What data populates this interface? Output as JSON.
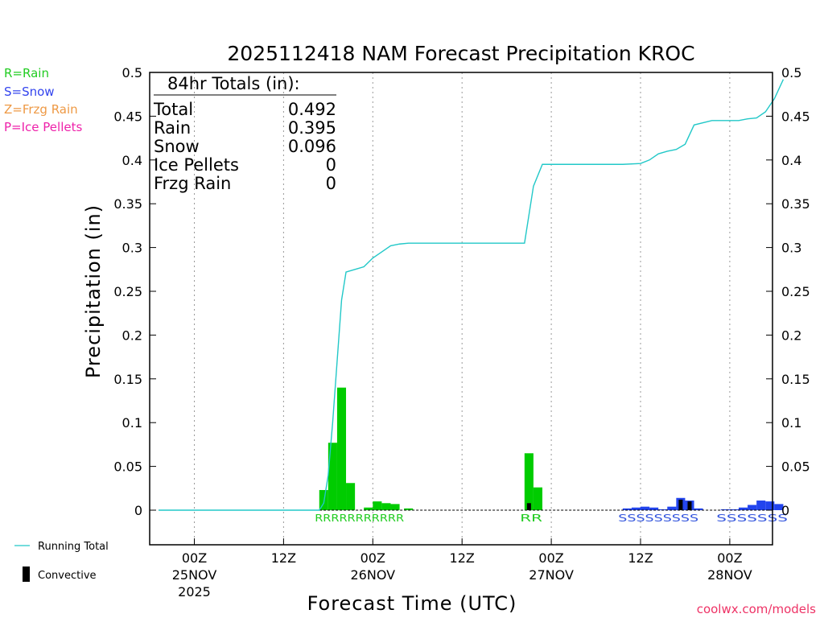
{
  "chart_data": {
    "type": "bar",
    "title": "2025112418 NAM Forecast Precipitation KROC",
    "xlabel": "Forecast Time (UTC)",
    "ylabel": "Precipitation (in)",
    "ylim": [
      0,
      0.5
    ],
    "xlim_hours": [
      -4,
      66
    ],
    "yticks": [
      "0",
      "0.05",
      "0.1",
      "0.15",
      "0.2",
      "0.25",
      "0.3",
      "0.35",
      "0.4",
      "0.45",
      "0.5"
    ],
    "xticks": [
      {
        "hour": 0,
        "line1": "00Z",
        "line2": "25NOV",
        "line3": "2025"
      },
      {
        "hour": 10,
        "line1": "12Z",
        "line2": "",
        "line3": ""
      },
      {
        "hour": 20,
        "line1": "00Z",
        "line2": "26NOV",
        "line3": ""
      },
      {
        "hour": 30,
        "line1": "12Z",
        "line2": "",
        "line3": ""
      },
      {
        "hour": 40,
        "line1": "00Z",
        "line2": "27NOV",
        "line3": ""
      },
      {
        "hour": 50,
        "line1": "12Z",
        "line2": "",
        "line3": ""
      },
      {
        "hour": 60,
        "line1": "00Z",
        "line2": "28NOV",
        "line3": ""
      }
    ],
    "totals_box": {
      "header": "84hr Totals (in):",
      "rows": [
        {
          "label": "Total",
          "value": "0.492"
        },
        {
          "label": "Rain",
          "value": "0.395"
        },
        {
          "label": "Snow",
          "value": "0.096"
        },
        {
          "label": "Ice Pellets",
          "value": "0"
        },
        {
          "label": "Frzg Rain",
          "value": "0"
        }
      ]
    },
    "type_legend": [
      {
        "label": "R=Rain",
        "color": "#22cc22"
      },
      {
        "label": "S=Snow",
        "color": "#3344ee"
      },
      {
        "label": "Z=Frzg Rain",
        "color": "#ee9944"
      },
      {
        "label": "P=Ice Pellets",
        "color": "#ee22aa"
      }
    ],
    "bottom_legend": {
      "running_total": "Running Total",
      "convective": "Convective"
    },
    "credit": "coolwx.com/models",
    "colors": {
      "rain": "#00cc00",
      "snow": "#2244ee",
      "convective": "#000000",
      "running_total": "#22c8c8",
      "grid": "#999999"
    },
    "bars": [
      {
        "h": 14.5,
        "v": 0.023,
        "type": "rain",
        "conv": 0
      },
      {
        "h": 15.5,
        "v": 0.077,
        "type": "rain",
        "conv": 0
      },
      {
        "h": 16.5,
        "v": 0.14,
        "type": "rain",
        "conv": 0
      },
      {
        "h": 17.5,
        "v": 0.031,
        "type": "rain",
        "conv": 0
      },
      {
        "h": 18.5,
        "v": 0.0,
        "type": "rain",
        "conv": 0
      },
      {
        "h": 19.5,
        "v": 0.003,
        "type": "rain",
        "conv": 0
      },
      {
        "h": 20.5,
        "v": 0.01,
        "type": "rain",
        "conv": 0
      },
      {
        "h": 21.5,
        "v": 0.008,
        "type": "rain",
        "conv": 0
      },
      {
        "h": 22.5,
        "v": 0.007,
        "type": "rain",
        "conv": 0
      },
      {
        "h": 24.0,
        "v": 0.002,
        "type": "rain",
        "conv": 0
      },
      {
        "h": 37.5,
        "v": 0.065,
        "type": "rain",
        "conv": 0.008
      },
      {
        "h": 38.5,
        "v": 0.026,
        "type": "rain",
        "conv": 0
      },
      {
        "h": 48.5,
        "v": 0.002,
        "type": "snow",
        "conv": 0
      },
      {
        "h": 49.5,
        "v": 0.003,
        "type": "snow",
        "conv": 0
      },
      {
        "h": 50.5,
        "v": 0.004,
        "type": "snow",
        "conv": 0
      },
      {
        "h": 51.5,
        "v": 0.003,
        "type": "snow",
        "conv": 0
      },
      {
        "h": 52.5,
        "v": 0.001,
        "type": "snow",
        "conv": 0
      },
      {
        "h": 53.5,
        "v": 0.004,
        "type": "snow",
        "conv": 0
      },
      {
        "h": 54.5,
        "v": 0.014,
        "type": "snow",
        "conv": 0.012
      },
      {
        "h": 55.5,
        "v": 0.011,
        "type": "snow",
        "conv": 0.01
      },
      {
        "h": 56.5,
        "v": 0.002,
        "type": "snow",
        "conv": 0
      },
      {
        "h": 59.5,
        "v": 0.001,
        "type": "snow",
        "conv": 0
      },
      {
        "h": 60.5,
        "v": 0.001,
        "type": "snow",
        "conv": 0
      },
      {
        "h": 61.5,
        "v": 0.003,
        "type": "snow",
        "conv": 0
      },
      {
        "h": 62.5,
        "v": 0.006,
        "type": "snow",
        "conv": 0
      },
      {
        "h": 63.5,
        "v": 0.011,
        "type": "snow",
        "conv": 0
      },
      {
        "h": 64.5,
        "v": 0.01,
        "type": "snow",
        "conv": 0
      },
      {
        "h": 65.5,
        "v": 0.007,
        "type": "snow",
        "conv": 0
      }
    ],
    "running_total": {
      "x": [
        -4,
        14,
        14.5,
        15,
        15.5,
        16,
        16.5,
        17,
        18,
        19,
        20,
        21,
        22,
        23,
        24,
        28,
        33,
        36,
        37,
        38,
        39,
        42,
        46,
        48,
        50,
        51,
        52,
        53,
        54,
        55,
        56,
        58,
        60,
        61,
        62,
        63,
        64,
        65,
        66
      ],
      "y": [
        0,
        0,
        0.008,
        0.04,
        0.1,
        0.17,
        0.24,
        0.272,
        0.275,
        0.278,
        0.288,
        0.295,
        0.302,
        0.304,
        0.305,
        0.305,
        0.305,
        0.305,
        0.305,
        0.37,
        0.395,
        0.395,
        0.395,
        0.395,
        0.396,
        0.4,
        0.407,
        0.41,
        0.412,
        0.418,
        0.44,
        0.445,
        0.445,
        0.445,
        0.447,
        0.448,
        0.455,
        0.47,
        0.492
      ]
    },
    "type_strings": [
      {
        "text": "RRRRRRRRRRR",
        "start_hour": 14,
        "end_hour": 23,
        "color": "#22cc22"
      },
      {
        "text": "RR",
        "start_hour": 37,
        "end_hour": 38.5,
        "color": "#22cc22"
      },
      {
        "text": "SSSSSSSSS",
        "start_hour": 48,
        "end_hour": 56,
        "color": "#3355dd"
      },
      {
        "text": "SSSSSSS",
        "start_hour": 59,
        "end_hour": 66,
        "color": "#3355dd"
      }
    ]
  }
}
